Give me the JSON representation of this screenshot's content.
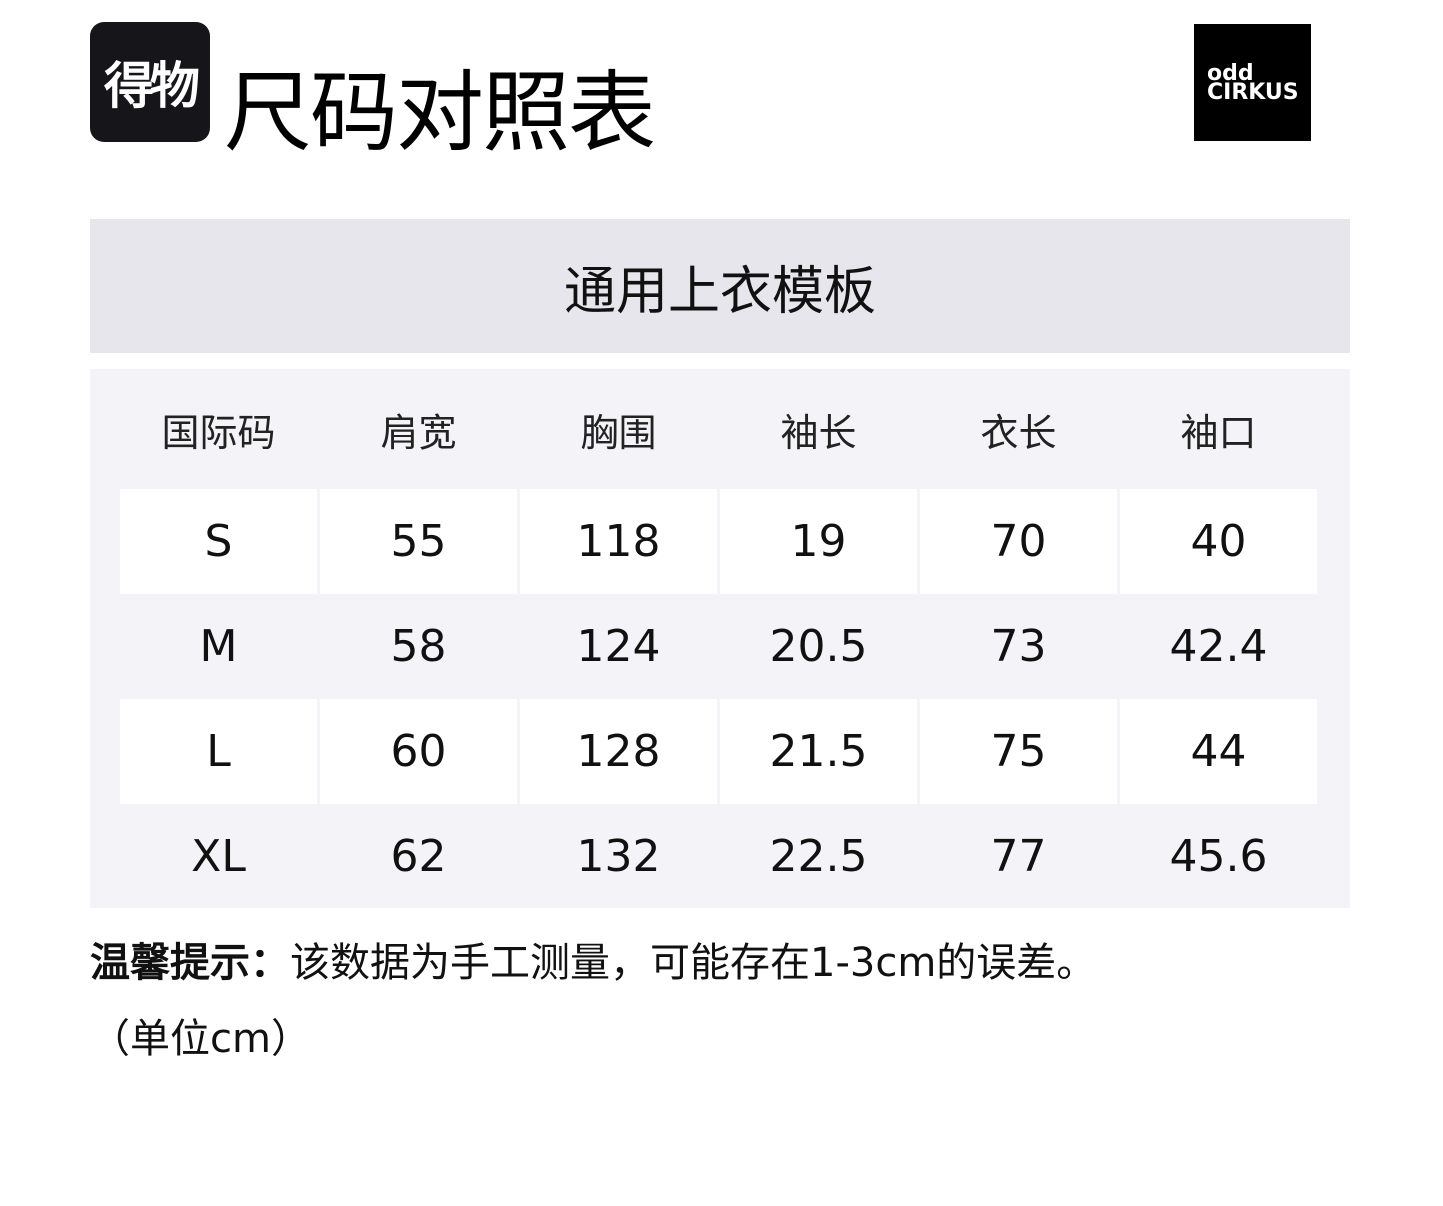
{
  "logo_text": "得物",
  "title": "尺码对照表",
  "brand": {
    "line1": "odd",
    "line2": "CIRKUS"
  },
  "template_title": "通用上衣模板",
  "table": {
    "headers": [
      "国际码",
      "肩宽",
      "胸围",
      "袖长",
      "衣长",
      "袖口"
    ],
    "rows": [
      [
        "S",
        "55",
        "118",
        "19",
        "70",
        "40"
      ],
      [
        "M",
        "58",
        "124",
        "20.5",
        "73",
        "42.4"
      ],
      [
        "L",
        "60",
        "128",
        "21.5",
        "75",
        "44"
      ],
      [
        "XL",
        "62",
        "132",
        "22.5",
        "77",
        "45.6"
      ]
    ]
  },
  "note": {
    "label": "温馨提示：",
    "text": "该数据为手工测量，可能存在1-3cm的误差。",
    "unit": "（单位cm）"
  }
}
